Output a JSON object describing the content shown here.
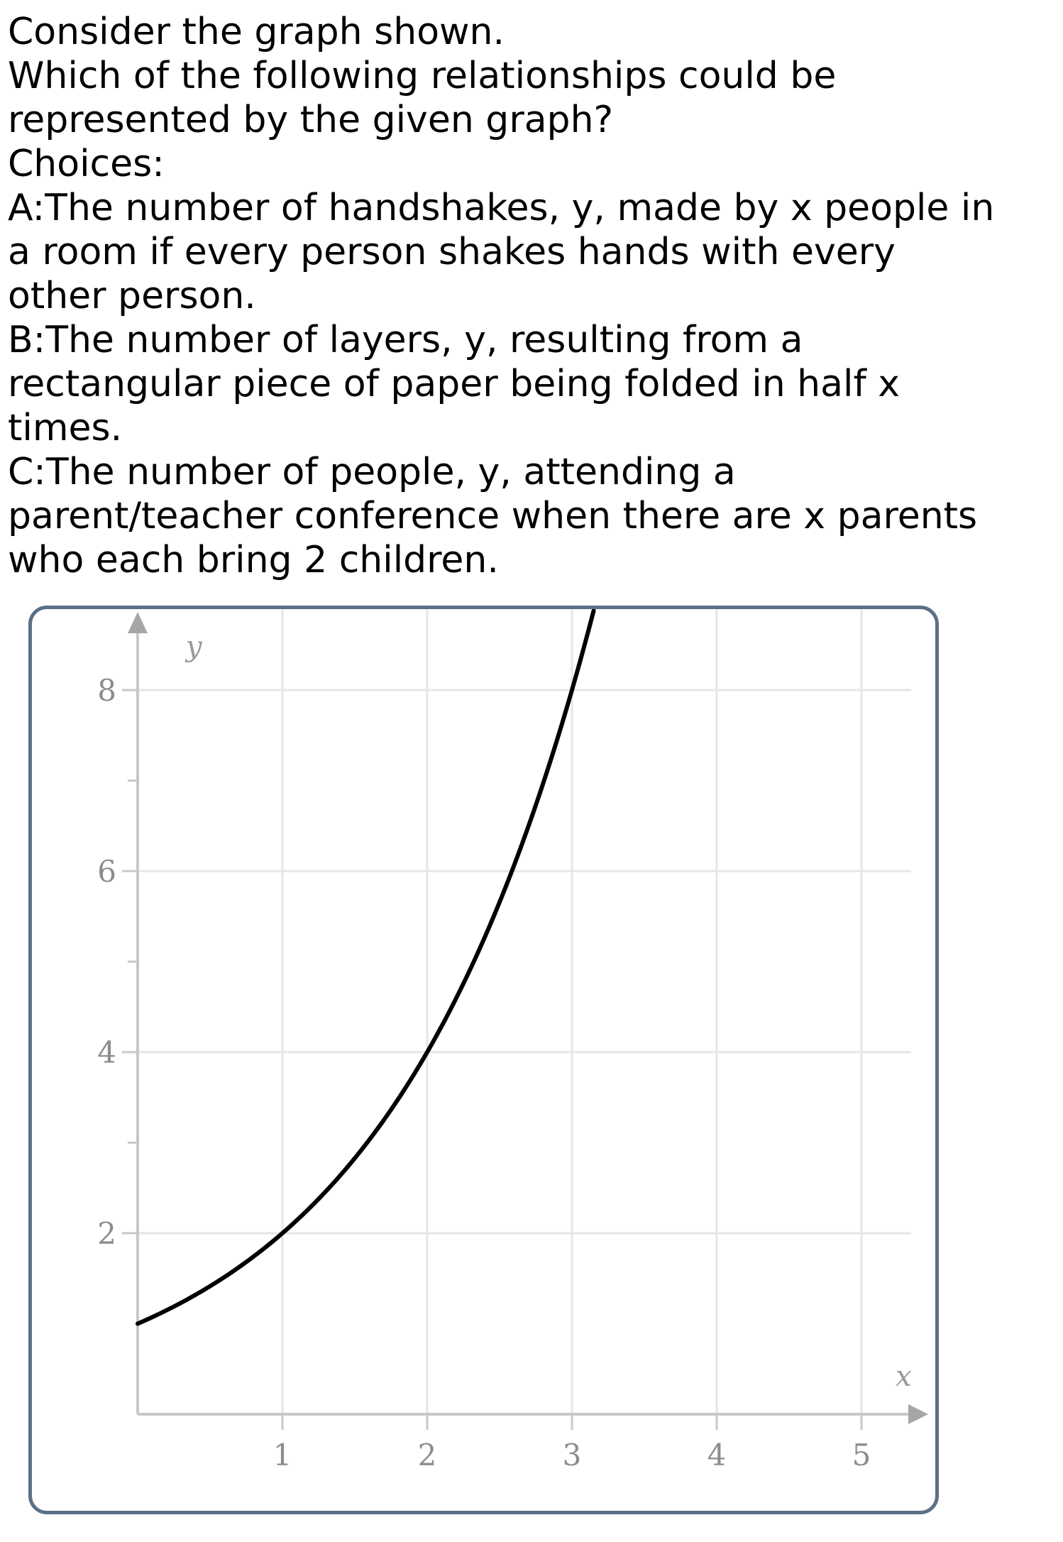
{
  "question": {
    "lines": [
      "Consider the graph shown.",
      "Which of the following relationships could be",
      "represented by the given graph?",
      "Choices:",
      "A:The number of handshakes, y, made by x people in",
      "a room if every person shakes hands with every",
      "other person.",
      "B:The number of layers, y, resulting from a",
      "rectangular piece of paper being folded in half x",
      "times.",
      "C:The number of people, y, attending a",
      "parent/teacher conference when there are x parents",
      "who each bring 2 children."
    ]
  },
  "chart_data": {
    "type": "line",
    "title": "",
    "xlabel": "x",
    "ylabel": "y",
    "xlim": [
      0,
      5.4
    ],
    "ylim": [
      -0.9,
      8.8
    ],
    "x_ticks": [
      1,
      2,
      3,
      4,
      5
    ],
    "x_tick_labels": [
      "1",
      "2",
      "3",
      "4",
      "5"
    ],
    "y_major_ticks": [
      2,
      4,
      6,
      8
    ],
    "y_tick_labels": [
      "2",
      "4",
      "6",
      "8"
    ],
    "y_minor_ticks": [
      3,
      5,
      7
    ],
    "grid": true,
    "axis_color": "#c8c8c8",
    "grid_color": "#e6e6e6",
    "line_color": "#000000",
    "series": [
      {
        "x": [
          0,
          0.5,
          1,
          1.5,
          2,
          2.5,
          3,
          3.15
        ],
        "y": [
          1,
          1.41,
          2,
          2.83,
          4,
          5.66,
          8,
          8.88
        ]
      }
    ]
  }
}
